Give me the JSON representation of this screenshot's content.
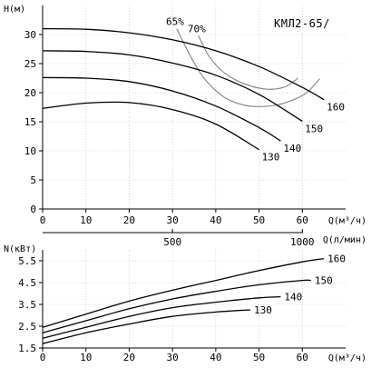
{
  "chart_data": [
    {
      "type": "line",
      "title": "КМЛ2-65/",
      "ylabel": "H(м)",
      "xlabel": "Q(м³/ч)",
      "xlabel_secondary": "Q(л/мин)",
      "xlim": [
        0,
        70
      ],
      "ylim": [
        0,
        35
      ],
      "x_ticks": [
        0,
        10,
        20,
        30,
        40,
        50,
        60
      ],
      "y_ticks": [
        0,
        5,
        10,
        15,
        20,
        25,
        30
      ],
      "x_secondary_ticks": [
        500,
        1000
      ],
      "grid": true,
      "series": [
        {
          "name": "160",
          "x": [
            0,
            10,
            20,
            30,
            40,
            50,
            60,
            65
          ],
          "y": [
            31,
            30.9,
            30.3,
            29.1,
            27.2,
            24.5,
            20.9,
            18.8
          ]
        },
        {
          "name": "150",
          "x": [
            0,
            10,
            20,
            30,
            40,
            50,
            60
          ],
          "y": [
            27.2,
            27.1,
            26.5,
            25.1,
            23,
            19.7,
            15.1
          ]
        },
        {
          "name": "140",
          "x": [
            0,
            10,
            20,
            30,
            40,
            50,
            55
          ],
          "y": [
            22.6,
            22.5,
            21.9,
            20.3,
            17.7,
            14,
            11.7
          ]
        },
        {
          "name": "130",
          "x": [
            0,
            10,
            20,
            30,
            40,
            50
          ],
          "y": [
            17.3,
            18.2,
            18.3,
            17.1,
            14.6,
            10.2
          ]
        }
      ],
      "efficiency_curves": [
        {
          "name": "65%",
          "x": [
            31,
            34,
            37.5,
            42,
            47,
            52.5,
            57,
            61,
            64
          ],
          "y": [
            31,
            26.5,
            22.3,
            19.2,
            17.8,
            17.7,
            18.5,
            20,
            22.4
          ]
        },
        {
          "name": "70%",
          "x": [
            36,
            38.5,
            42,
            47,
            52,
            56,
            59
          ],
          "y": [
            29.8,
            26.2,
            23.4,
            21.4,
            20.6,
            21,
            22.5
          ]
        }
      ]
    },
    {
      "type": "line",
      "ylabel": "N(кВт)",
      "xlabel": "Q(м³/ч)",
      "xlim": [
        0,
        70
      ],
      "ylim": [
        1.5,
        6
      ],
      "x_ticks": [
        0,
        10,
        20,
        30,
        40,
        50,
        60
      ],
      "y_ticks": [
        1.5,
        2.5,
        3.5,
        4.5,
        5.5
      ],
      "y_tick_labels": [
        "1.5",
        "2.5",
        "3.5",
        "4.5",
        "5.5"
      ],
      "grid": true,
      "series": [
        {
          "name": "160",
          "x": [
            0,
            10,
            20,
            30,
            40,
            50,
            60,
            65
          ],
          "y": [
            2.45,
            3.05,
            3.65,
            4.15,
            4.6,
            5.05,
            5.45,
            5.6
          ]
        },
        {
          "name": "150",
          "x": [
            0,
            10,
            20,
            30,
            40,
            50,
            60,
            62
          ],
          "y": [
            2.2,
            2.75,
            3.3,
            3.75,
            4.1,
            4.4,
            4.6,
            4.6
          ]
        },
        {
          "name": "140",
          "x": [
            0,
            10,
            20,
            30,
            40,
            50,
            55
          ],
          "y": [
            1.95,
            2.45,
            2.95,
            3.35,
            3.6,
            3.8,
            3.85
          ]
        },
        {
          "name": "130",
          "x": [
            0,
            10,
            20,
            30,
            40,
            48
          ],
          "y": [
            1.7,
            2.2,
            2.6,
            2.95,
            3.15,
            3.25
          ]
        }
      ]
    }
  ]
}
